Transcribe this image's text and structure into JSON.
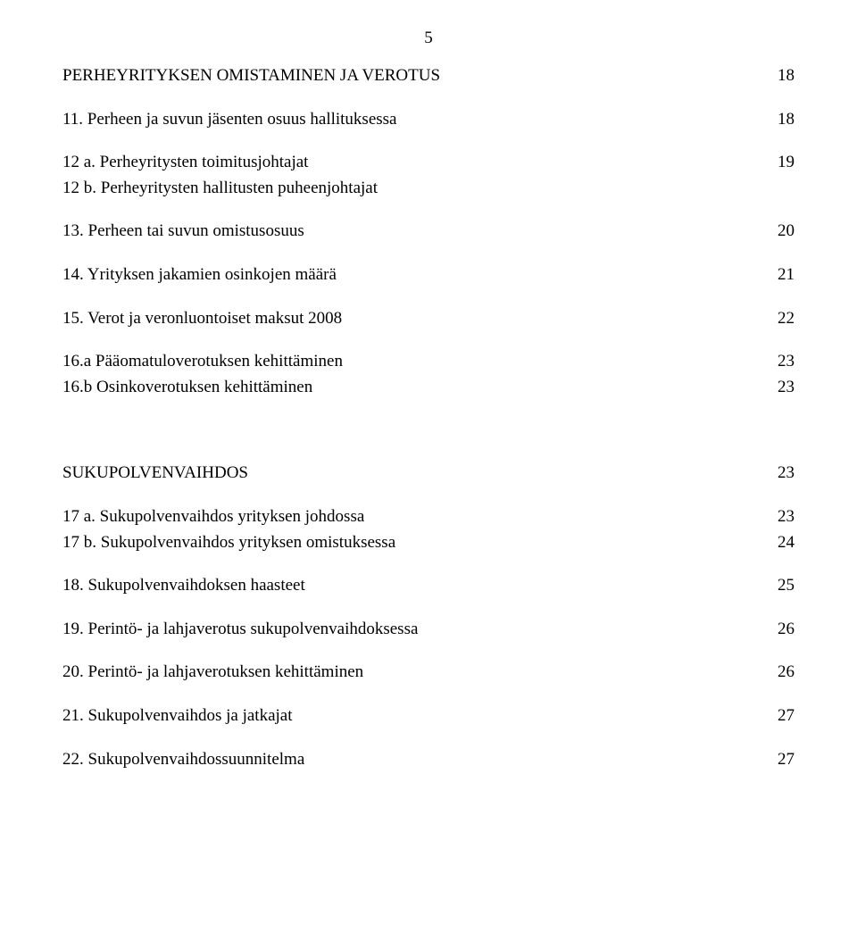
{
  "page_number": "5",
  "sections": [
    {
      "kind": "heading",
      "label": "PERHEYRITYKSEN OMISTAMINEN JA VEROTUS",
      "page": "18",
      "gap_after": "small"
    },
    {
      "kind": "entry",
      "label": "11. Perheen ja suvun jäsenten osuus hallituksessa",
      "page": "18",
      "gap_after": "small"
    },
    {
      "kind": "entry",
      "label": "12 a. Perheyritysten toimitusjohtajat",
      "page": "19",
      "gap_after": "tiny"
    },
    {
      "kind": "entry",
      "label": "12 b. Perheyritysten hallitusten puheenjohtajat",
      "page": "",
      "gap_after": "small"
    },
    {
      "kind": "entry",
      "label": "13. Perheen tai suvun omistusosuus",
      "page": "20",
      "gap_after": "small"
    },
    {
      "kind": "entry",
      "label": "14. Yrityksen jakamien osinkojen määrä",
      "page": "21",
      "gap_after": "small"
    },
    {
      "kind": "entry",
      "label": "15. Verot ja veronluontoiset maksut 2008",
      "page": "22",
      "gap_after": "small"
    },
    {
      "kind": "entry",
      "label": "16.a Pääomatuloverotuksen kehittäminen",
      "page": "23",
      "gap_after": "tiny"
    },
    {
      "kind": "entry",
      "label": "16.b Osinkoverotuksen kehittäminen",
      "page": "23",
      "gap_after": "large"
    },
    {
      "kind": "heading",
      "label": "SUKUPOLVENVAIHDOS",
      "page": "23",
      "gap_after": "small"
    },
    {
      "kind": "entry",
      "label": "17 a. Sukupolvenvaihdos yrityksen johdossa",
      "page": "23",
      "gap_after": "tiny"
    },
    {
      "kind": "entry",
      "label": "17 b. Sukupolvenvaihdos yrityksen omistuksessa",
      "page": "24",
      "gap_after": "small"
    },
    {
      "kind": "entry",
      "label": "18. Sukupolvenvaihdoksen haasteet",
      "page": "25",
      "gap_after": "small"
    },
    {
      "kind": "entry",
      "label": "19. Perintö- ja lahjaverotus sukupolvenvaihdoksessa",
      "page": "26",
      "gap_after": "small"
    },
    {
      "kind": "entry",
      "label": "20. Perintö- ja lahjaverotuksen kehittäminen",
      "page": "26",
      "gap_after": "small"
    },
    {
      "kind": "entry",
      "label": "21. Sukupolvenvaihdos ja jatkajat",
      "page": "27",
      "gap_after": "small"
    },
    {
      "kind": "entry",
      "label": "22. Sukupolvenvaihdossuunnitelma",
      "page": "27",
      "gap_after": "none"
    }
  ],
  "colors": {
    "background": "#ffffff",
    "text": "#000000"
  },
  "typography": {
    "font_family": "Times New Roman",
    "font_size_pt": 14
  }
}
